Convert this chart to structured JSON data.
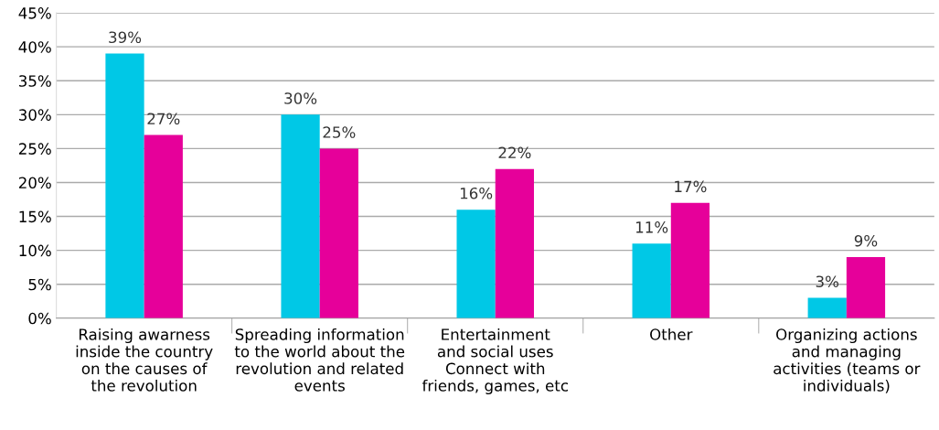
{
  "chart_data": {
    "type": "bar",
    "categories": [
      "Raising awarness\ninside the country\non the causes of\nthe revolution",
      "Spreading information\nto the world about the\nrevolution and related\nevents",
      "Entertainment\nand social uses\nConnect with\nfriends, games, etc",
      "Other",
      "Organizing actions\nand managing\nactivities (teams or\nindividuals)"
    ],
    "series": [
      {
        "color": "#00c8e6",
        "values": [
          39,
          30,
          16,
          11,
          3
        ],
        "value_labels": [
          "39%",
          "30%",
          "16%",
          "11%",
          "3%"
        ]
      },
      {
        "color": "#e6009a",
        "values": [
          27,
          25,
          22,
          17,
          9
        ],
        "value_labels": [
          "27%",
          "25%",
          "22%",
          "17%",
          "9%"
        ]
      }
    ],
    "ylim": [
      0,
      45
    ],
    "yticks": [
      {
        "value": 0,
        "label": "0%"
      },
      {
        "value": 5,
        "label": "5%"
      },
      {
        "value": 10,
        "label": "10%"
      },
      {
        "value": 15,
        "label": "15%"
      },
      {
        "value": 20,
        "label": "20%"
      },
      {
        "value": 25,
        "label": "25%"
      },
      {
        "value": 30,
        "label": "30%"
      },
      {
        "value": 35,
        "label": "35%"
      },
      {
        "value": 40,
        "label": "40%"
      },
      {
        "value": 45,
        "label": "45%"
      }
    ],
    "grid": "y",
    "legend": false
  }
}
